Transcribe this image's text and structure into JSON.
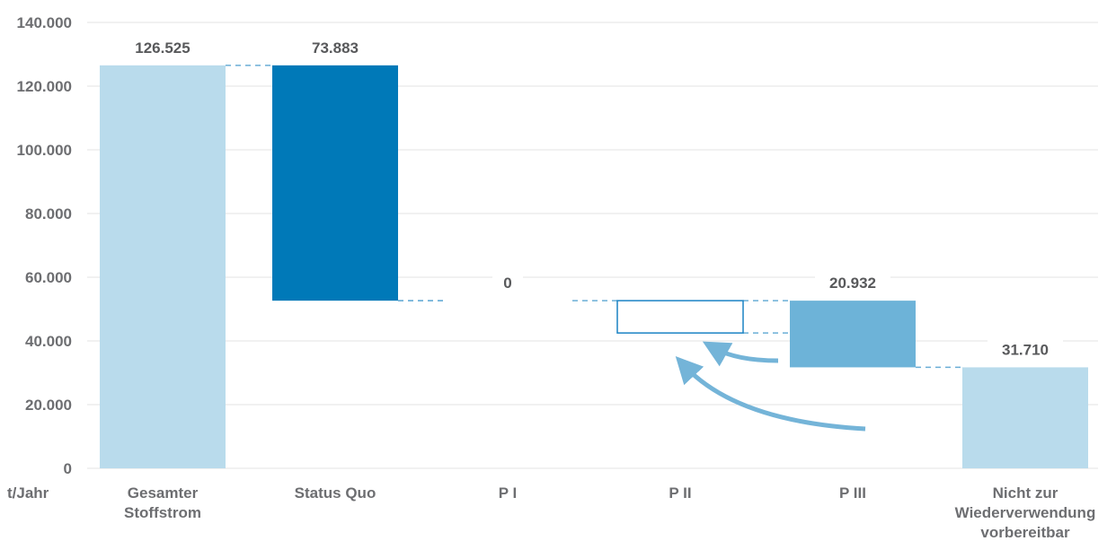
{
  "chart_data": {
    "type": "bar",
    "subtype": "waterfall",
    "ylabel": "t/Jahr",
    "ylim": [
      0,
      140000
    ],
    "yticks": [
      0,
      20000,
      40000,
      60000,
      80000,
      100000,
      120000,
      140000
    ],
    "ytick_labels": [
      "0",
      "20.000",
      "40.000",
      "60.000",
      "80.000",
      "100.000",
      "120.000",
      "140.000"
    ],
    "grid": true,
    "categories": [
      [
        "Gesamter",
        "Stoffstrom"
      ],
      [
        "Status Quo"
      ],
      [
        "P I"
      ],
      [
        "P II"
      ],
      [
        "P III"
      ],
      [
        "Nicht zur",
        "Wiederverwendung",
        "vorbereitbar"
      ]
    ],
    "bars": [
      {
        "base": 0,
        "top": 126525,
        "label": "126.525",
        "style": "light"
      },
      {
        "base": 52642,
        "top": 126525,
        "label": "73.883",
        "style": "dark"
      },
      {
        "base": 52642,
        "top": 52642,
        "label": "0",
        "style": "none"
      },
      {
        "base": 42500,
        "top": 52642,
        "label": "",
        "style": "outline"
      },
      {
        "base": 31710,
        "top": 52642,
        "label": "20.932",
        "style": "medium"
      },
      {
        "base": 0,
        "top": 31710,
        "label": "31.710",
        "style": "light"
      }
    ],
    "colors": {
      "light": "#b9dbec",
      "dark": "#0079b8",
      "medium": "#6db3d8",
      "outline": "#1a82c4",
      "arrow": "#74b4d8"
    }
  }
}
